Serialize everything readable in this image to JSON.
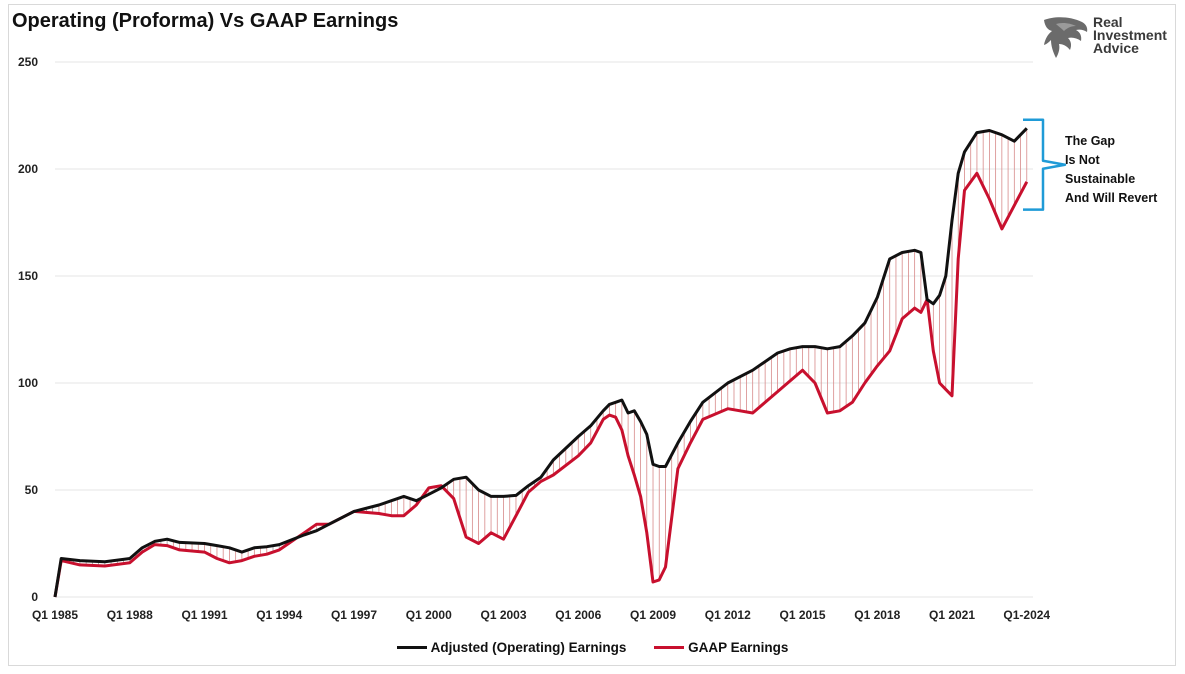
{
  "chart_data": {
    "type": "line",
    "title": "Operating (Proforma) Vs GAAP Earnings",
    "x_tick_labels": [
      "Q1 1985",
      "Q1 1988",
      "Q1 1991",
      "Q1 1994",
      "Q1 1997",
      "Q1 2000",
      "Q1 2003",
      "Q1 2006",
      "Q1 2009",
      "Q1 2012",
      "Q1 2015",
      "Q1 2018",
      "Q1 2021",
      "Q1-2024"
    ],
    "xlim": [
      1985,
      2024.25
    ],
    "ylim": [
      0,
      250
    ],
    "y_ticks": [
      0,
      50,
      100,
      150,
      200,
      250
    ],
    "grid": "horizontal",
    "legend_position": "bottom",
    "series": [
      {
        "name": "Adjusted (Operating) Earnings",
        "color": "#111111",
        "x": [
          1985.0,
          1985.25,
          1986,
          1987,
          1988,
          1988.5,
          1989,
          1989.5,
          1990,
          1991,
          1991.5,
          1992,
          1992.5,
          1993,
          1993.5,
          1994,
          1995,
          1995.5,
          1996,
          1997,
          1998,
          1998.5,
          1999,
          1999.5,
          2000,
          2000.5,
          2001,
          2001.5,
          2002,
          2002.5,
          2003,
          2003.5,
          2004,
          2004.5,
          2005,
          2006,
          2006.5,
          2007,
          2007.25,
          2007.5,
          2007.75,
          2008,
          2008.25,
          2008.5,
          2008.75,
          2009,
          2009.25,
          2009.5,
          2010,
          2010.5,
          2011,
          2012,
          2013,
          2014,
          2014.5,
          2015,
          2015.5,
          2016,
          2016.5,
          2017,
          2017.5,
          2018,
          2018.5,
          2019,
          2019.5,
          2019.75,
          2020,
          2020.25,
          2020.5,
          2020.75,
          2021,
          2021.25,
          2021.5,
          2022,
          2022.5,
          2023,
          2023.5,
          2024
        ],
        "values": [
          0,
          18,
          17,
          16.5,
          18,
          23,
          26,
          27,
          25.5,
          25,
          24,
          23,
          21,
          23,
          23.5,
          24.5,
          29,
          31,
          34,
          40,
          43,
          45,
          47,
          45,
          48,
          51,
          55,
          56,
          50,
          47,
          47,
          47.5,
          52,
          56,
          64,
          75,
          80,
          87,
          90,
          91,
          92,
          86,
          87,
          82,
          76,
          62,
          61,
          61,
          72,
          82,
          91,
          100,
          106,
          114,
          116,
          117,
          117,
          116,
          117,
          122,
          128,
          140,
          158,
          161,
          162,
          161,
          139,
          137,
          141,
          150,
          176,
          198,
          208,
          217,
          218,
          216,
          213,
          219
        ]
      },
      {
        "name": "GAAP Earnings",
        "color": "#c8102e",
        "x": [
          1985.0,
          1985.25,
          1986,
          1987,
          1988,
          1988.5,
          1989,
          1989.5,
          1990,
          1991,
          1991.5,
          1992,
          1992.5,
          1993,
          1993.5,
          1994,
          1995,
          1995.5,
          1996,
          1997,
          1998,
          1998.5,
          1999,
          1999.5,
          2000,
          2000.5,
          2001,
          2001.5,
          2002,
          2002.5,
          2003,
          2003.5,
          2004,
          2004.5,
          2005,
          2006,
          2006.5,
          2007,
          2007.25,
          2007.5,
          2007.75,
          2008,
          2008.25,
          2008.5,
          2008.75,
          2009,
          2009.25,
          2009.5,
          2010,
          2010.5,
          2011,
          2012,
          2013,
          2014,
          2014.5,
          2015,
          2015.5,
          2016,
          2016.5,
          2017,
          2017.5,
          2018,
          2018.5,
          2019,
          2019.5,
          2019.75,
          2020,
          2020.25,
          2020.5,
          2020.75,
          2021,
          2021.25,
          2021.5,
          2022,
          2022.5,
          2023,
          2023.5,
          2024
        ],
        "values": [
          0,
          17,
          15,
          14.5,
          16,
          21,
          24.5,
          24,
          22,
          21,
          18,
          16,
          17,
          19,
          20,
          22,
          30,
          34,
          34,
          40,
          39,
          38,
          38,
          43,
          51,
          52,
          46,
          28,
          25,
          30,
          27,
          38,
          49,
          54,
          57,
          66,
          72,
          83,
          85,
          84,
          78,
          66,
          57,
          47,
          30,
          7,
          8,
          14,
          60,
          72,
          83,
          88,
          86,
          96,
          101,
          106,
          100,
          86,
          87,
          91,
          100,
          108,
          115,
          130,
          135,
          133,
          139,
          115,
          100,
          97,
          94,
          158,
          190,
          198,
          186,
          172,
          183,
          194
        ]
      }
    ],
    "annotation": [
      "The Gap",
      "Is Not",
      "Sustainable",
      "And Will Revert"
    ]
  },
  "logo": {
    "line1": "Real",
    "line2": "Investment",
    "line3": "Advice"
  },
  "colors": {
    "operating": "#111111",
    "gaap": "#c8102e",
    "bracket": "#1f9bd7",
    "grid": "#e6e6e6"
  }
}
